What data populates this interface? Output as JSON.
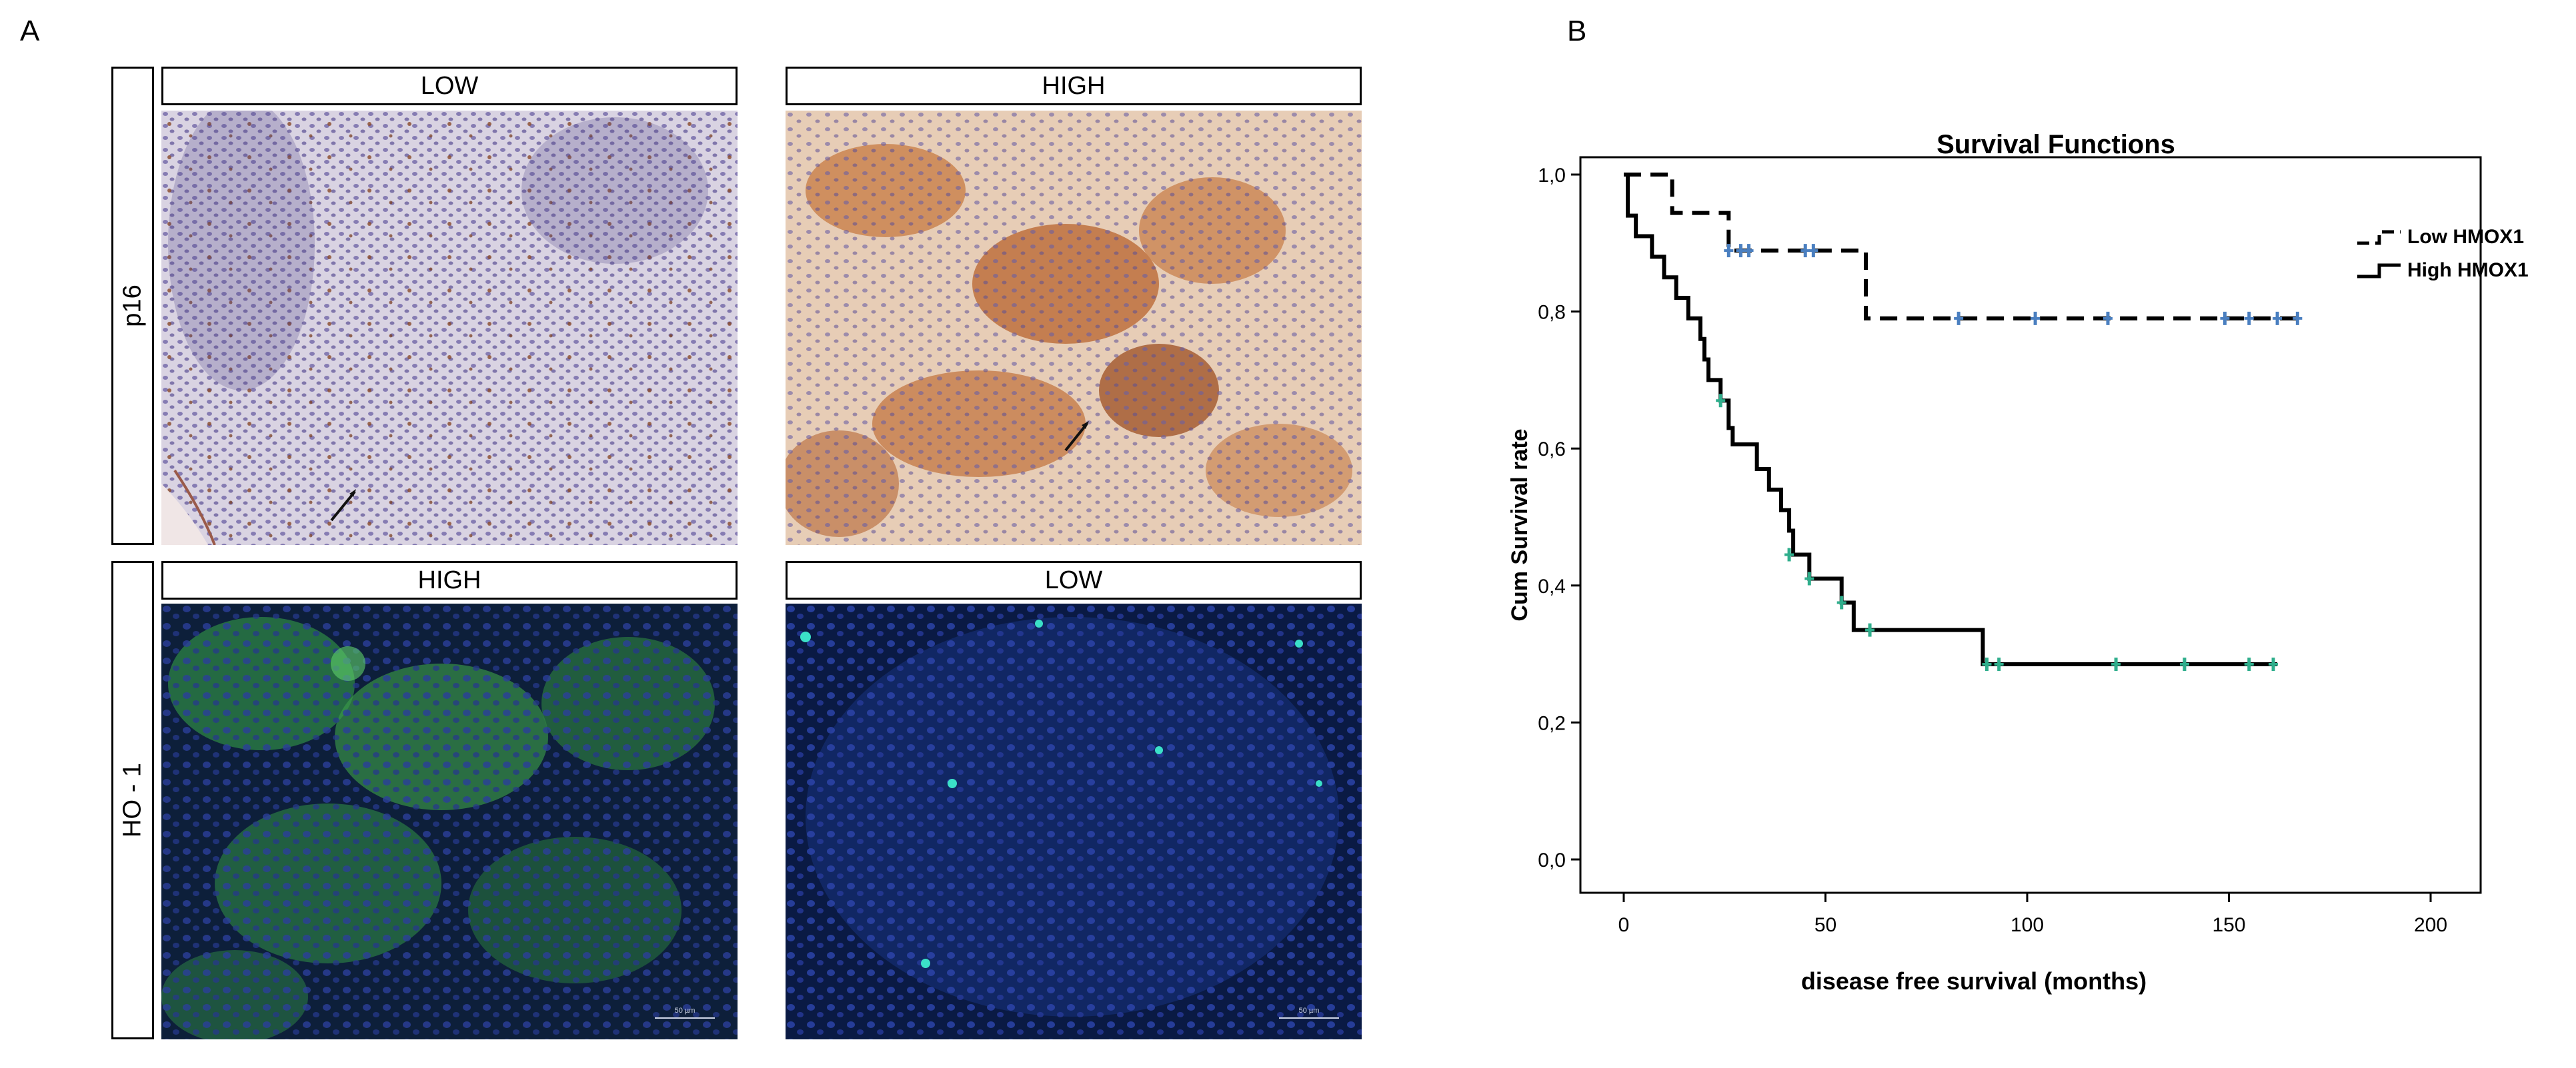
{
  "panel_a": {
    "letter": "A",
    "rows": [
      {
        "label": "p16",
        "columns": [
          "LOW",
          "HIGH"
        ]
      },
      {
        "label": "HO - 1",
        "columns": [
          "HIGH",
          "LOW"
        ]
      }
    ],
    "scale_bar_text": "50 µm"
  },
  "panel_b": {
    "letter": "B"
  },
  "chart_data": {
    "type": "line",
    "title": "Survival Functions",
    "xlabel": "disease free survival (months)",
    "ylabel": "Cum Survival rate",
    "xlim": [
      0,
      200
    ],
    "ylim": [
      0,
      1.0
    ],
    "xticks": [
      "0",
      "50",
      "100",
      "150",
      "200"
    ],
    "yticks": [
      "0,0",
      "0,2",
      "0,4",
      "0,6",
      "0,8",
      "1,0"
    ],
    "legend_position": "top-right",
    "series": [
      {
        "name": "Low HMOX1",
        "style": "dashed",
        "color": "#000000",
        "censor_color": "#4a7fc0",
        "steps": [
          [
            0,
            1.0
          ],
          [
            12,
            0.944
          ],
          [
            26,
            0.889
          ],
          [
            60,
            0.79
          ],
          [
            168,
            0.79
          ]
        ],
        "censored": [
          [
            26,
            0.889
          ],
          [
            29,
            0.889
          ],
          [
            31,
            0.889
          ],
          [
            45,
            0.889
          ],
          [
            47,
            0.889
          ],
          [
            83,
            0.79
          ],
          [
            102,
            0.79
          ],
          [
            120,
            0.79
          ],
          [
            149,
            0.79
          ],
          [
            155,
            0.79
          ],
          [
            162,
            0.79
          ],
          [
            167,
            0.79
          ]
        ]
      },
      {
        "name": "High HMOX1",
        "style": "solid",
        "color": "#000000",
        "censor_color": "#2fae8c",
        "steps": [
          [
            0,
            1.0
          ],
          [
            1,
            0.94
          ],
          [
            3,
            0.91
          ],
          [
            7,
            0.88
          ],
          [
            10,
            0.85
          ],
          [
            13,
            0.82
          ],
          [
            16,
            0.79
          ],
          [
            19,
            0.76
          ],
          [
            20,
            0.73
          ],
          [
            21,
            0.7
          ],
          [
            24,
            0.67
          ],
          [
            26,
            0.63
          ],
          [
            27,
            0.606
          ],
          [
            33,
            0.57
          ],
          [
            36,
            0.54
          ],
          [
            39,
            0.51
          ],
          [
            41,
            0.48
          ],
          [
            42,
            0.445
          ],
          [
            46,
            0.41
          ],
          [
            54,
            0.375
          ],
          [
            57,
            0.335
          ],
          [
            89,
            0.285
          ],
          [
            162,
            0.285
          ]
        ],
        "censored": [
          [
            24,
            0.67
          ],
          [
            41,
            0.445
          ],
          [
            46,
            0.41
          ],
          [
            54,
            0.375
          ],
          [
            61,
            0.335
          ],
          [
            90,
            0.285
          ],
          [
            93,
            0.285
          ],
          [
            122,
            0.285
          ],
          [
            139,
            0.285
          ],
          [
            155,
            0.285
          ],
          [
            161,
            0.285
          ]
        ]
      }
    ]
  }
}
